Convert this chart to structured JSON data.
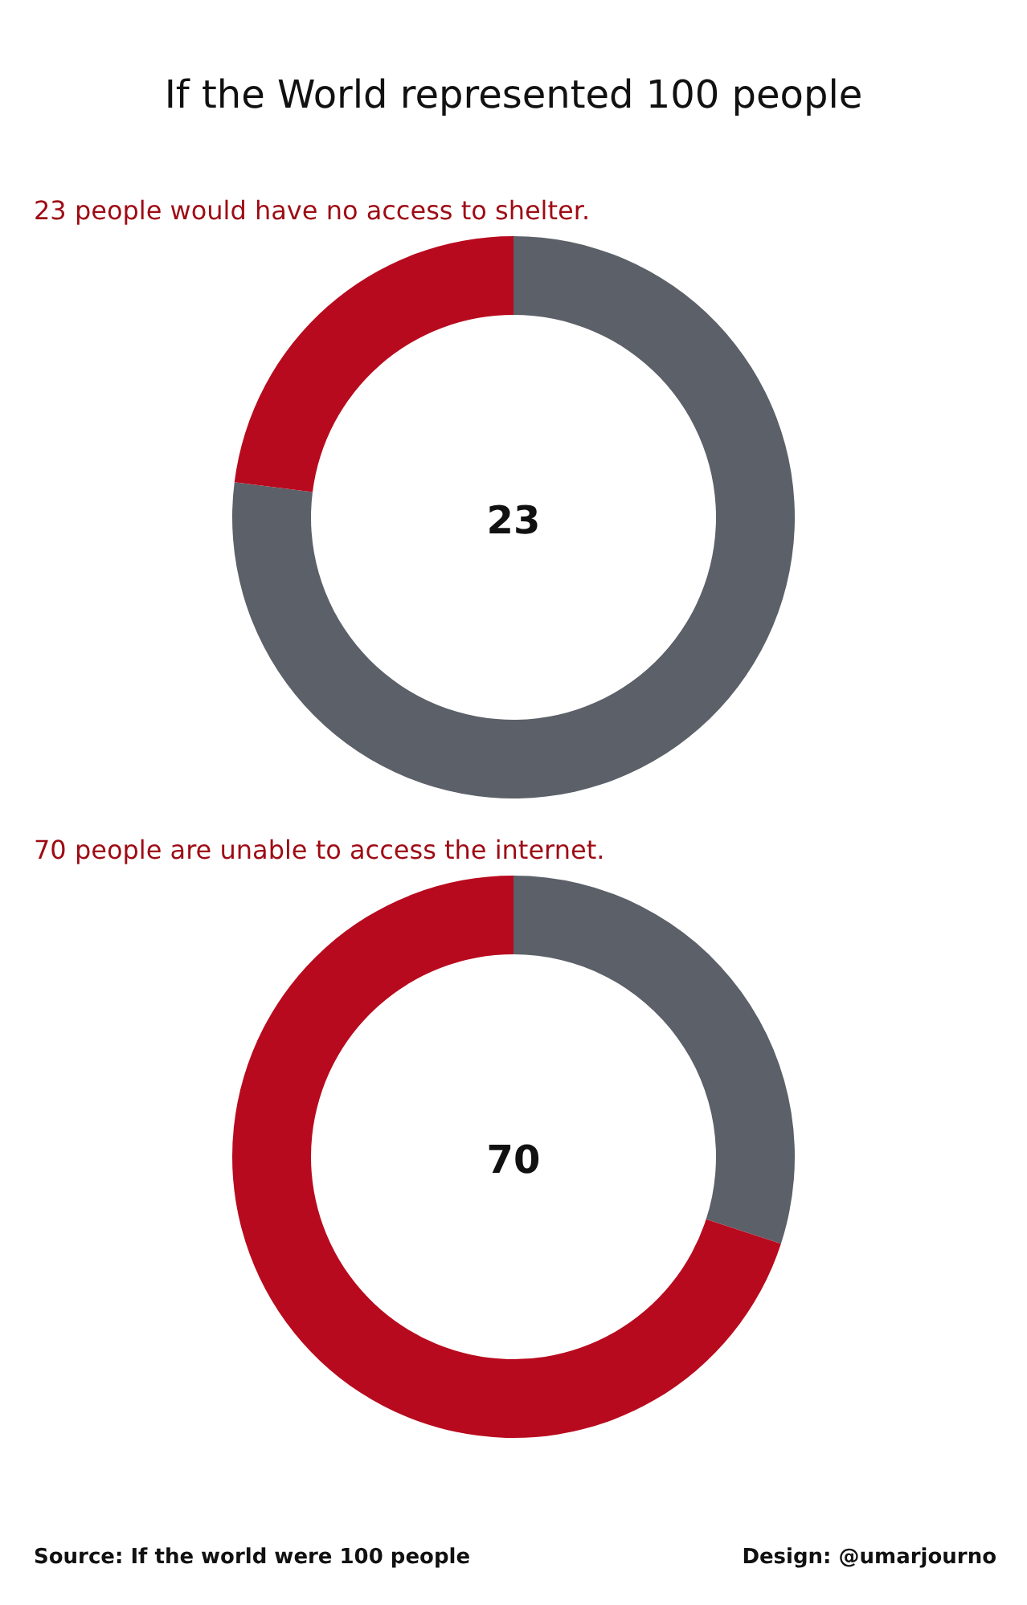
{
  "chart_data": [
    {
      "type": "donut",
      "title": "If the World represented 100 people",
      "subtitle": "23 people would have no access to shelter.",
      "categories": [
        null,
        null
      ],
      "values": [
        77,
        23
      ],
      "colors": [
        "#5c6068",
        "#b80a1e"
      ],
      "annotations": [
        "23"
      ]
    },
    {
      "type": "donut",
      "subtitle": "70 people are unable to access the internet.",
      "categories": [
        null,
        null
      ],
      "values": [
        30,
        70
      ],
      "colors": [
        "#5c6068",
        "#b80a1e"
      ],
      "annotations": [
        "70",
        "Source: If the world were 100 people",
        "Design: @umarjourno"
      ]
    }
  ]
}
